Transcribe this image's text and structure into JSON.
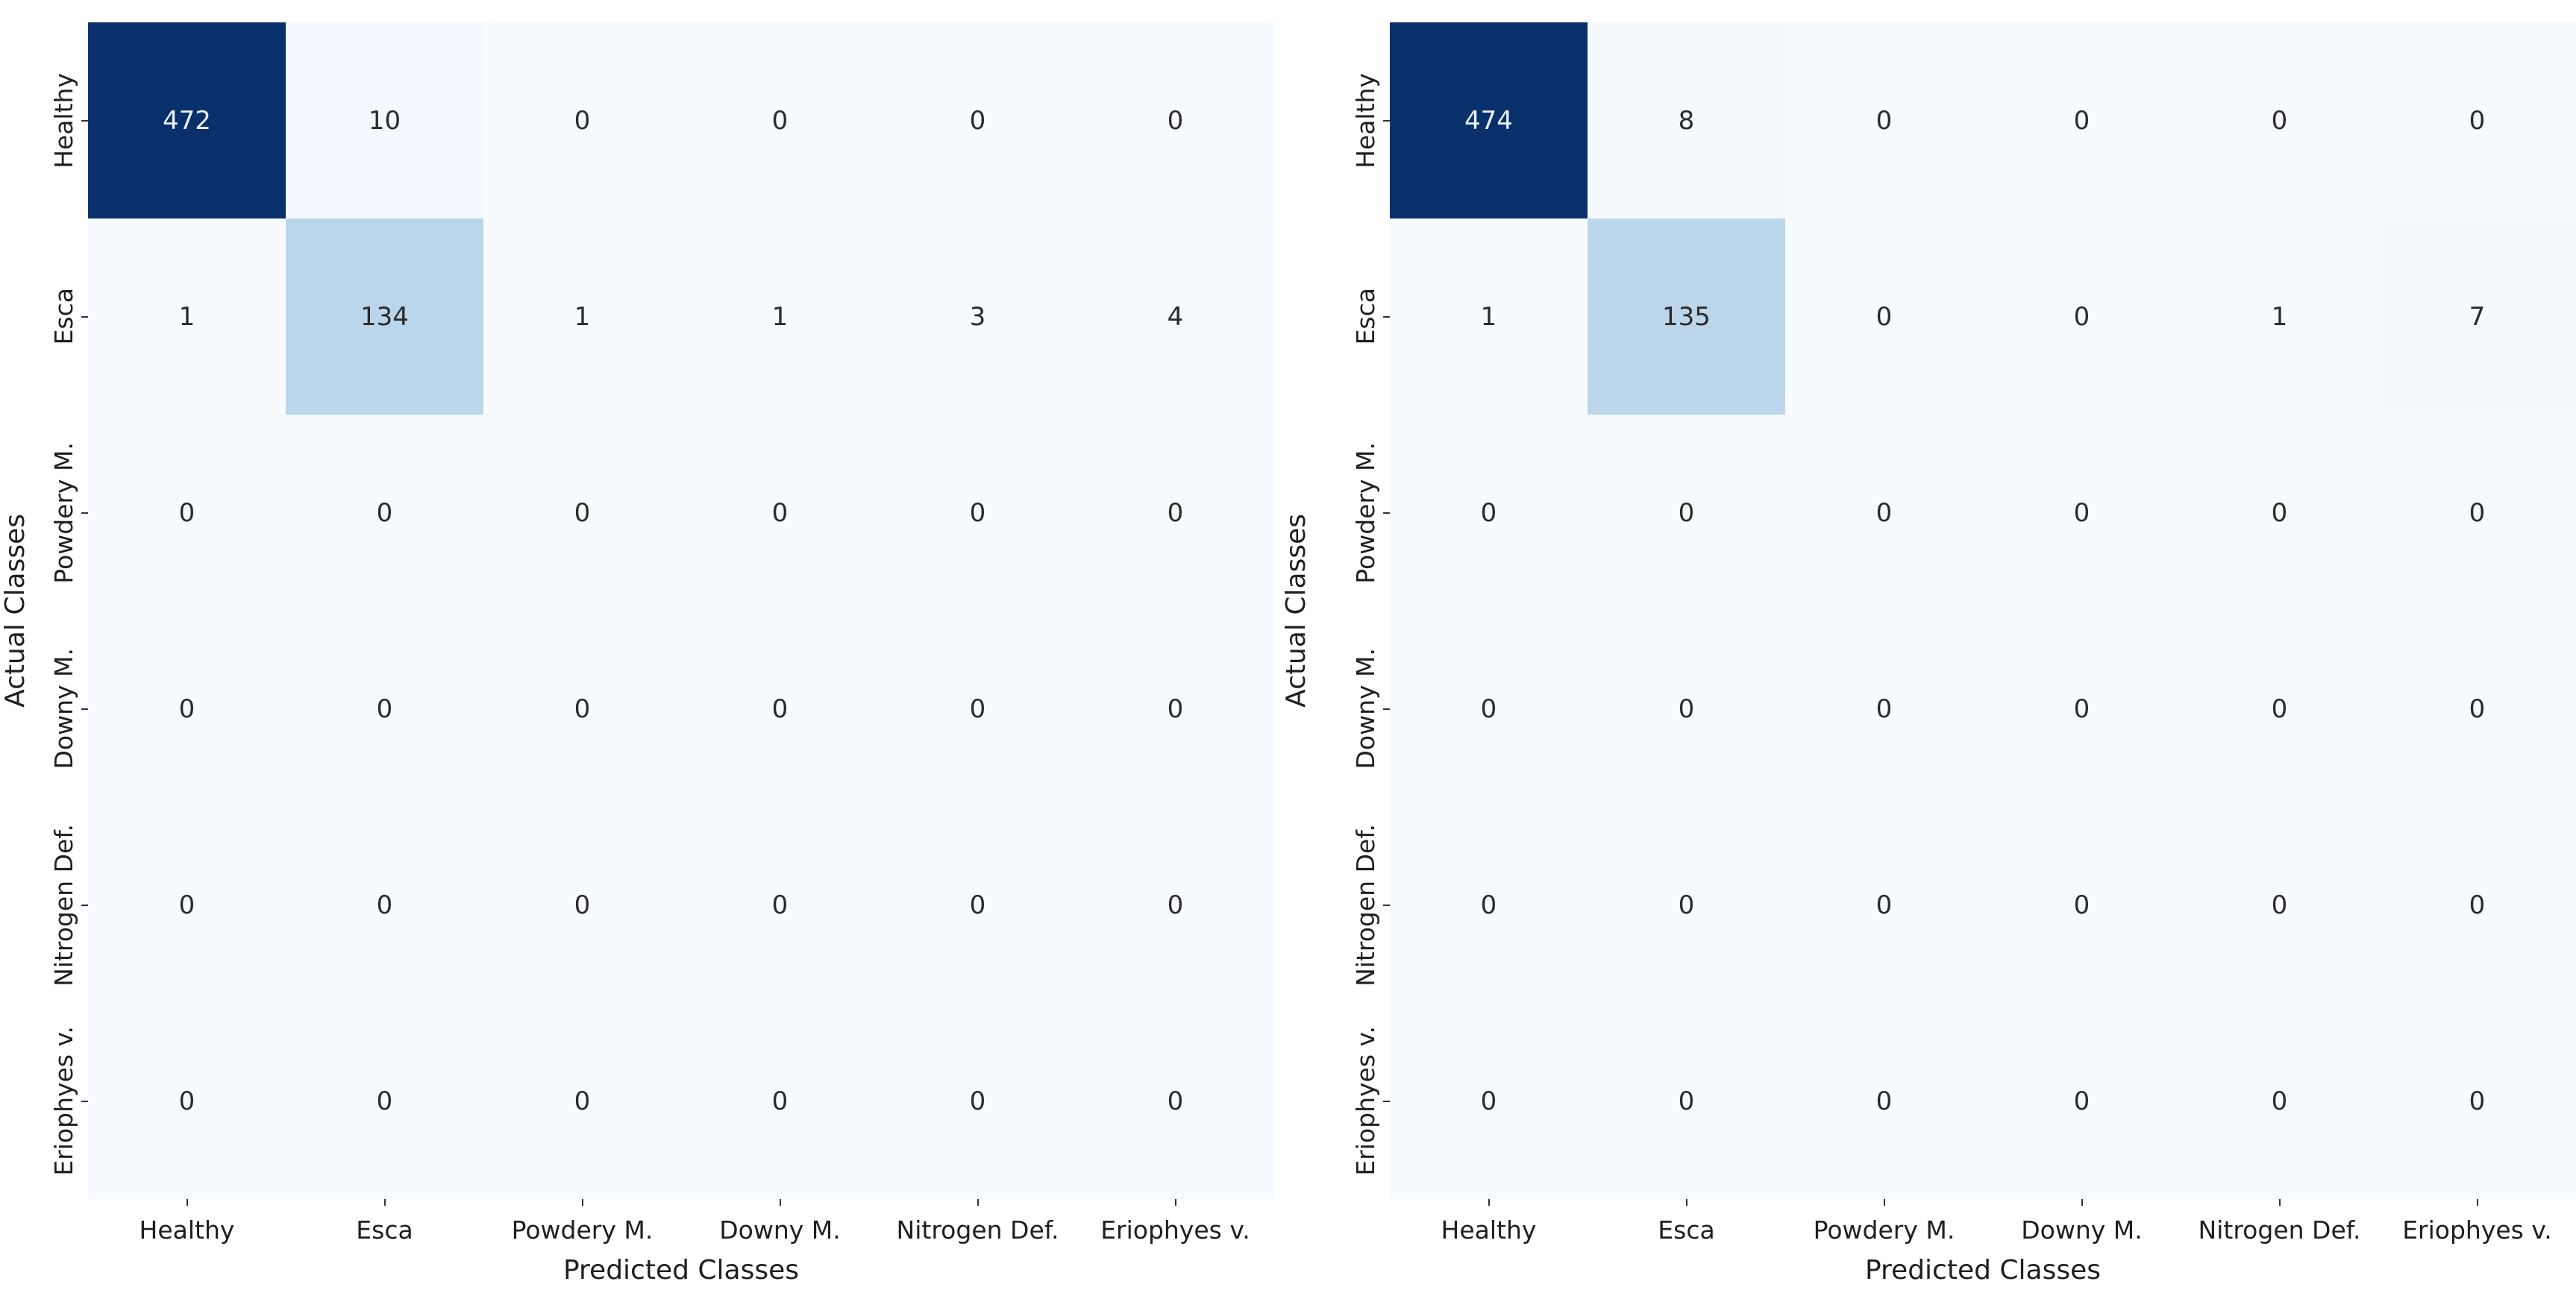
{
  "figure": {
    "background": "#ffffff",
    "text_color": "#1f1f1f"
  },
  "colors": {
    "colormap_name": "Blues",
    "colormap_anchors": [
      "#f7fbff",
      "#deebf7",
      "#c6dbef",
      "#9ecae1",
      "#6baed6",
      "#4292c6",
      "#2171b5",
      "#08519c",
      "#08306b"
    ],
    "annotation_dark": "#2b2b2b",
    "annotation_light": "#eaf0f6",
    "tick_color": "#333333"
  },
  "chart_data": [
    {
      "type": "heatmap",
      "name": "confusion-matrix-left",
      "xlabel": "Predicted Classes",
      "ylabel": "Actual Classes",
      "categories": [
        "Healthy",
        "Esca",
        "Powdery M.",
        "Downy M.",
        "Nitrogen Def.",
        "Eriophyes v."
      ],
      "x_tick_labels": [
        "Healthy",
        "Esca",
        "Powdery M.",
        "Downy M.",
        "Nitrogen Def.",
        "Eriophyes v."
      ],
      "y_tick_labels": [
        "Healthy",
        "Esca",
        "Powdery M.",
        "Downy M.",
        "Nitrogen Def.",
        "Eriophyes v."
      ],
      "values": [
        [
          472,
          10,
          0,
          0,
          0,
          0
        ],
        [
          1,
          134,
          1,
          1,
          3,
          4
        ],
        [
          0,
          0,
          0,
          0,
          0,
          0
        ],
        [
          0,
          0,
          0,
          0,
          0,
          0
        ],
        [
          0,
          0,
          0,
          0,
          0,
          0
        ],
        [
          0,
          0,
          0,
          0,
          0,
          0
        ]
      ],
      "vmin": 0,
      "vmax": 472,
      "grid": false,
      "legend": "none"
    },
    {
      "type": "heatmap",
      "name": "confusion-matrix-right",
      "xlabel": "Predicted Classes",
      "ylabel": "Actual Classes",
      "categories": [
        "Healthy",
        "Esca",
        "Powdery M.",
        "Downy M.",
        "Nitrogen Def.",
        "Eriophyes v."
      ],
      "x_tick_labels": [
        "Healthy",
        "Esca",
        "Powdery M.",
        "Downy M.",
        "Nitrogen Def.",
        "Eriophyes v."
      ],
      "y_tick_labels": [
        "Healthy",
        "Esca",
        "Powdery M.",
        "Downy M.",
        "Nitrogen Def.",
        "Eriophyes v."
      ],
      "values": [
        [
          474,
          8,
          0,
          0,
          0,
          0
        ],
        [
          1,
          135,
          0,
          0,
          1,
          7
        ],
        [
          0,
          0,
          0,
          0,
          0,
          0
        ],
        [
          0,
          0,
          0,
          0,
          0,
          0
        ],
        [
          0,
          0,
          0,
          0,
          0,
          0
        ],
        [
          0,
          0,
          0,
          0,
          0,
          0
        ]
      ],
      "vmin": 0,
      "vmax": 474,
      "grid": false,
      "legend": "none"
    }
  ]
}
